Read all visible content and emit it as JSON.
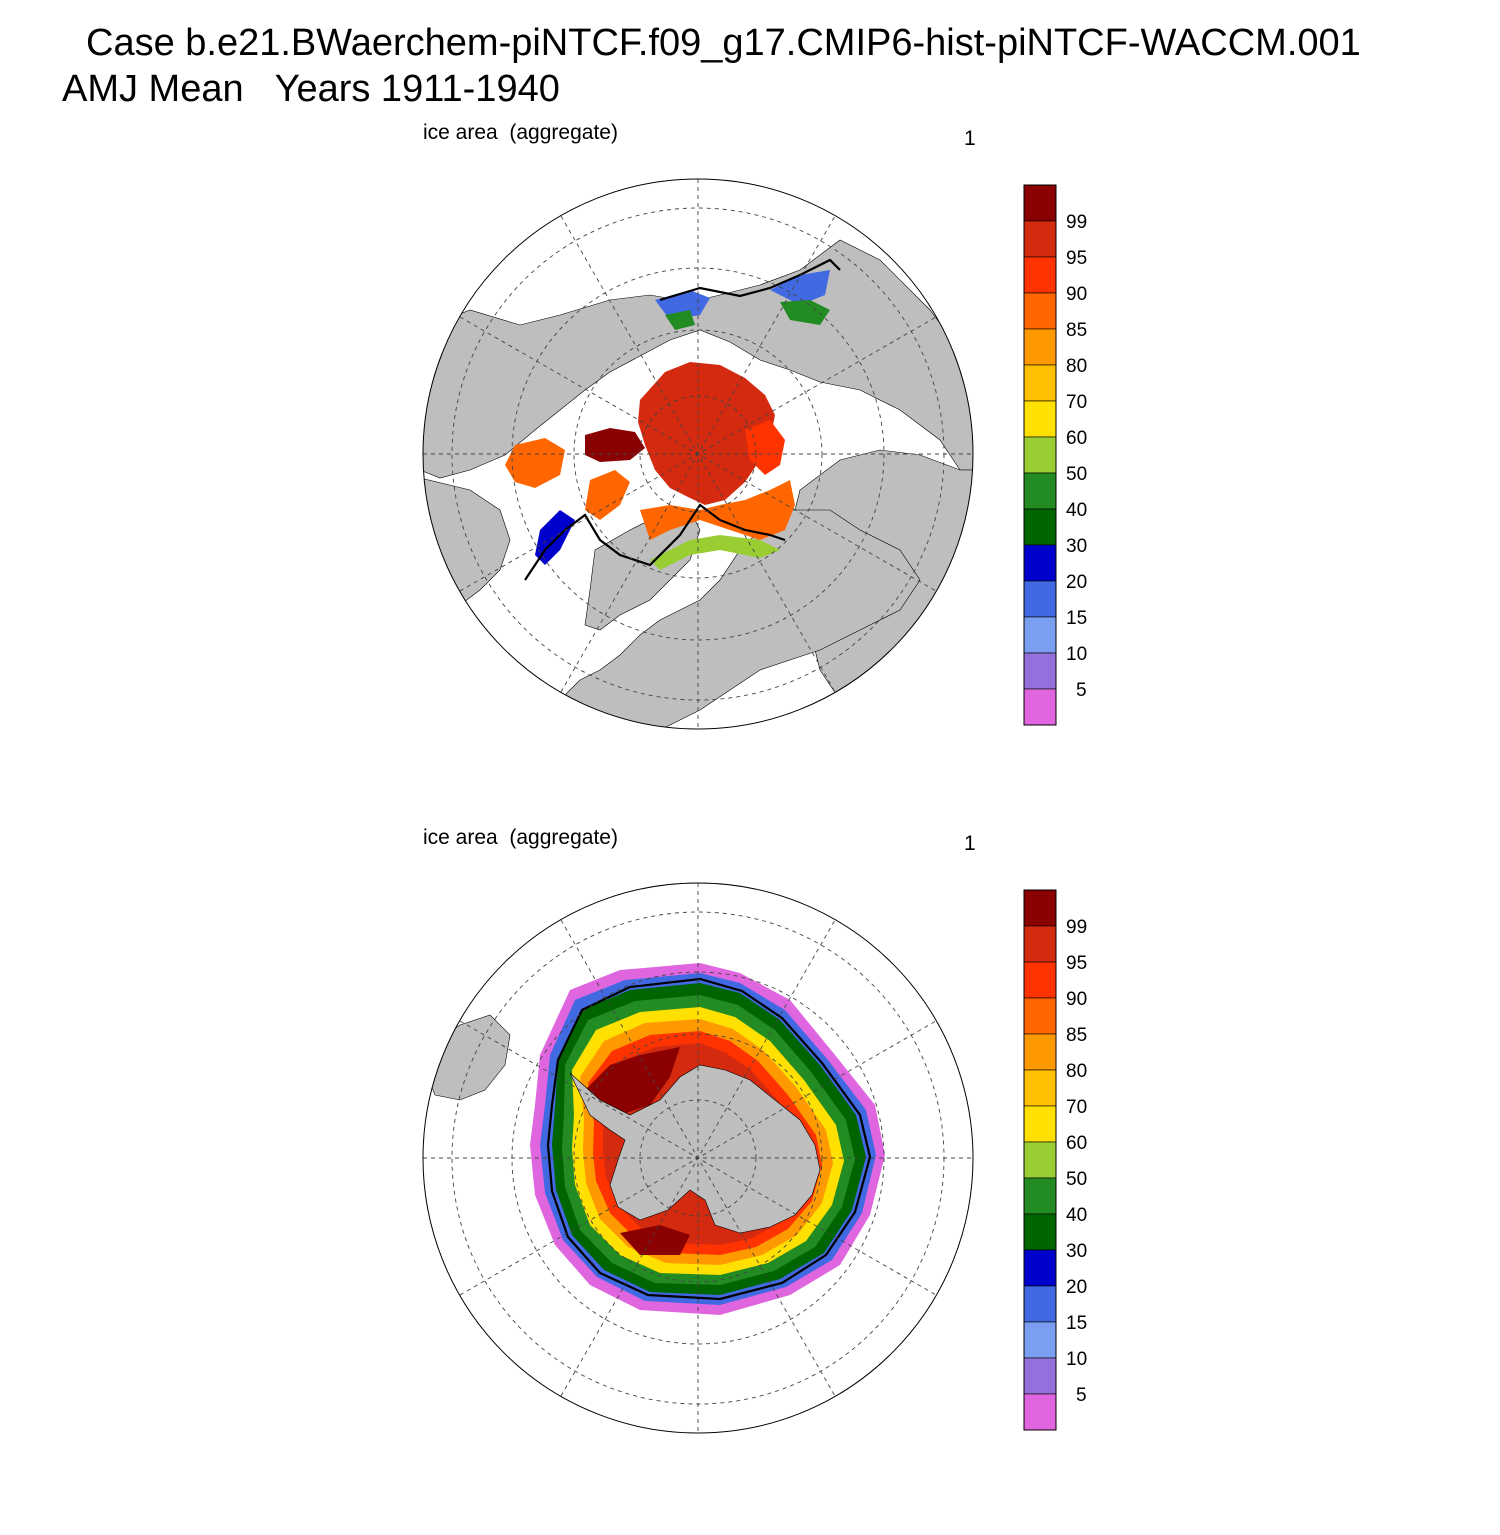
{
  "title": {
    "line1": "Case b.e21.BWaerchem-piNTCF.f09_g17.CMIP6-hist-piNTCF-WACCM.001",
    "line2": "AMJ Mean   Years 1911-1940"
  },
  "panels": [
    {
      "id": "nh",
      "hemisphere": "north",
      "left_label": "ice area  (aggregate)",
      "right_label": "1"
    },
    {
      "id": "sh",
      "hemisphere": "south",
      "left_label": "ice area  (aggregate)",
      "right_label": "1"
    }
  ],
  "colorbar": {
    "levels": [
      "5",
      "10",
      "15",
      "20",
      "30",
      "40",
      "50",
      "60",
      "70",
      "80",
      "85",
      "90",
      "95",
      "99"
    ],
    "colors": [
      "#e066e0",
      "#9370db",
      "#7b9ff0",
      "#4169e1",
      "#0000cd",
      "#006400",
      "#228b22",
      "#9acd32",
      "#ffe000",
      "#ffc000",
      "#ff9900",
      "#ff6600",
      "#ff3300",
      "#d42a10",
      "#8b0000"
    ]
  },
  "colors": {
    "land": "#bebebe",
    "ocean": "#ffffff",
    "edge_contour": "#000000"
  }
}
